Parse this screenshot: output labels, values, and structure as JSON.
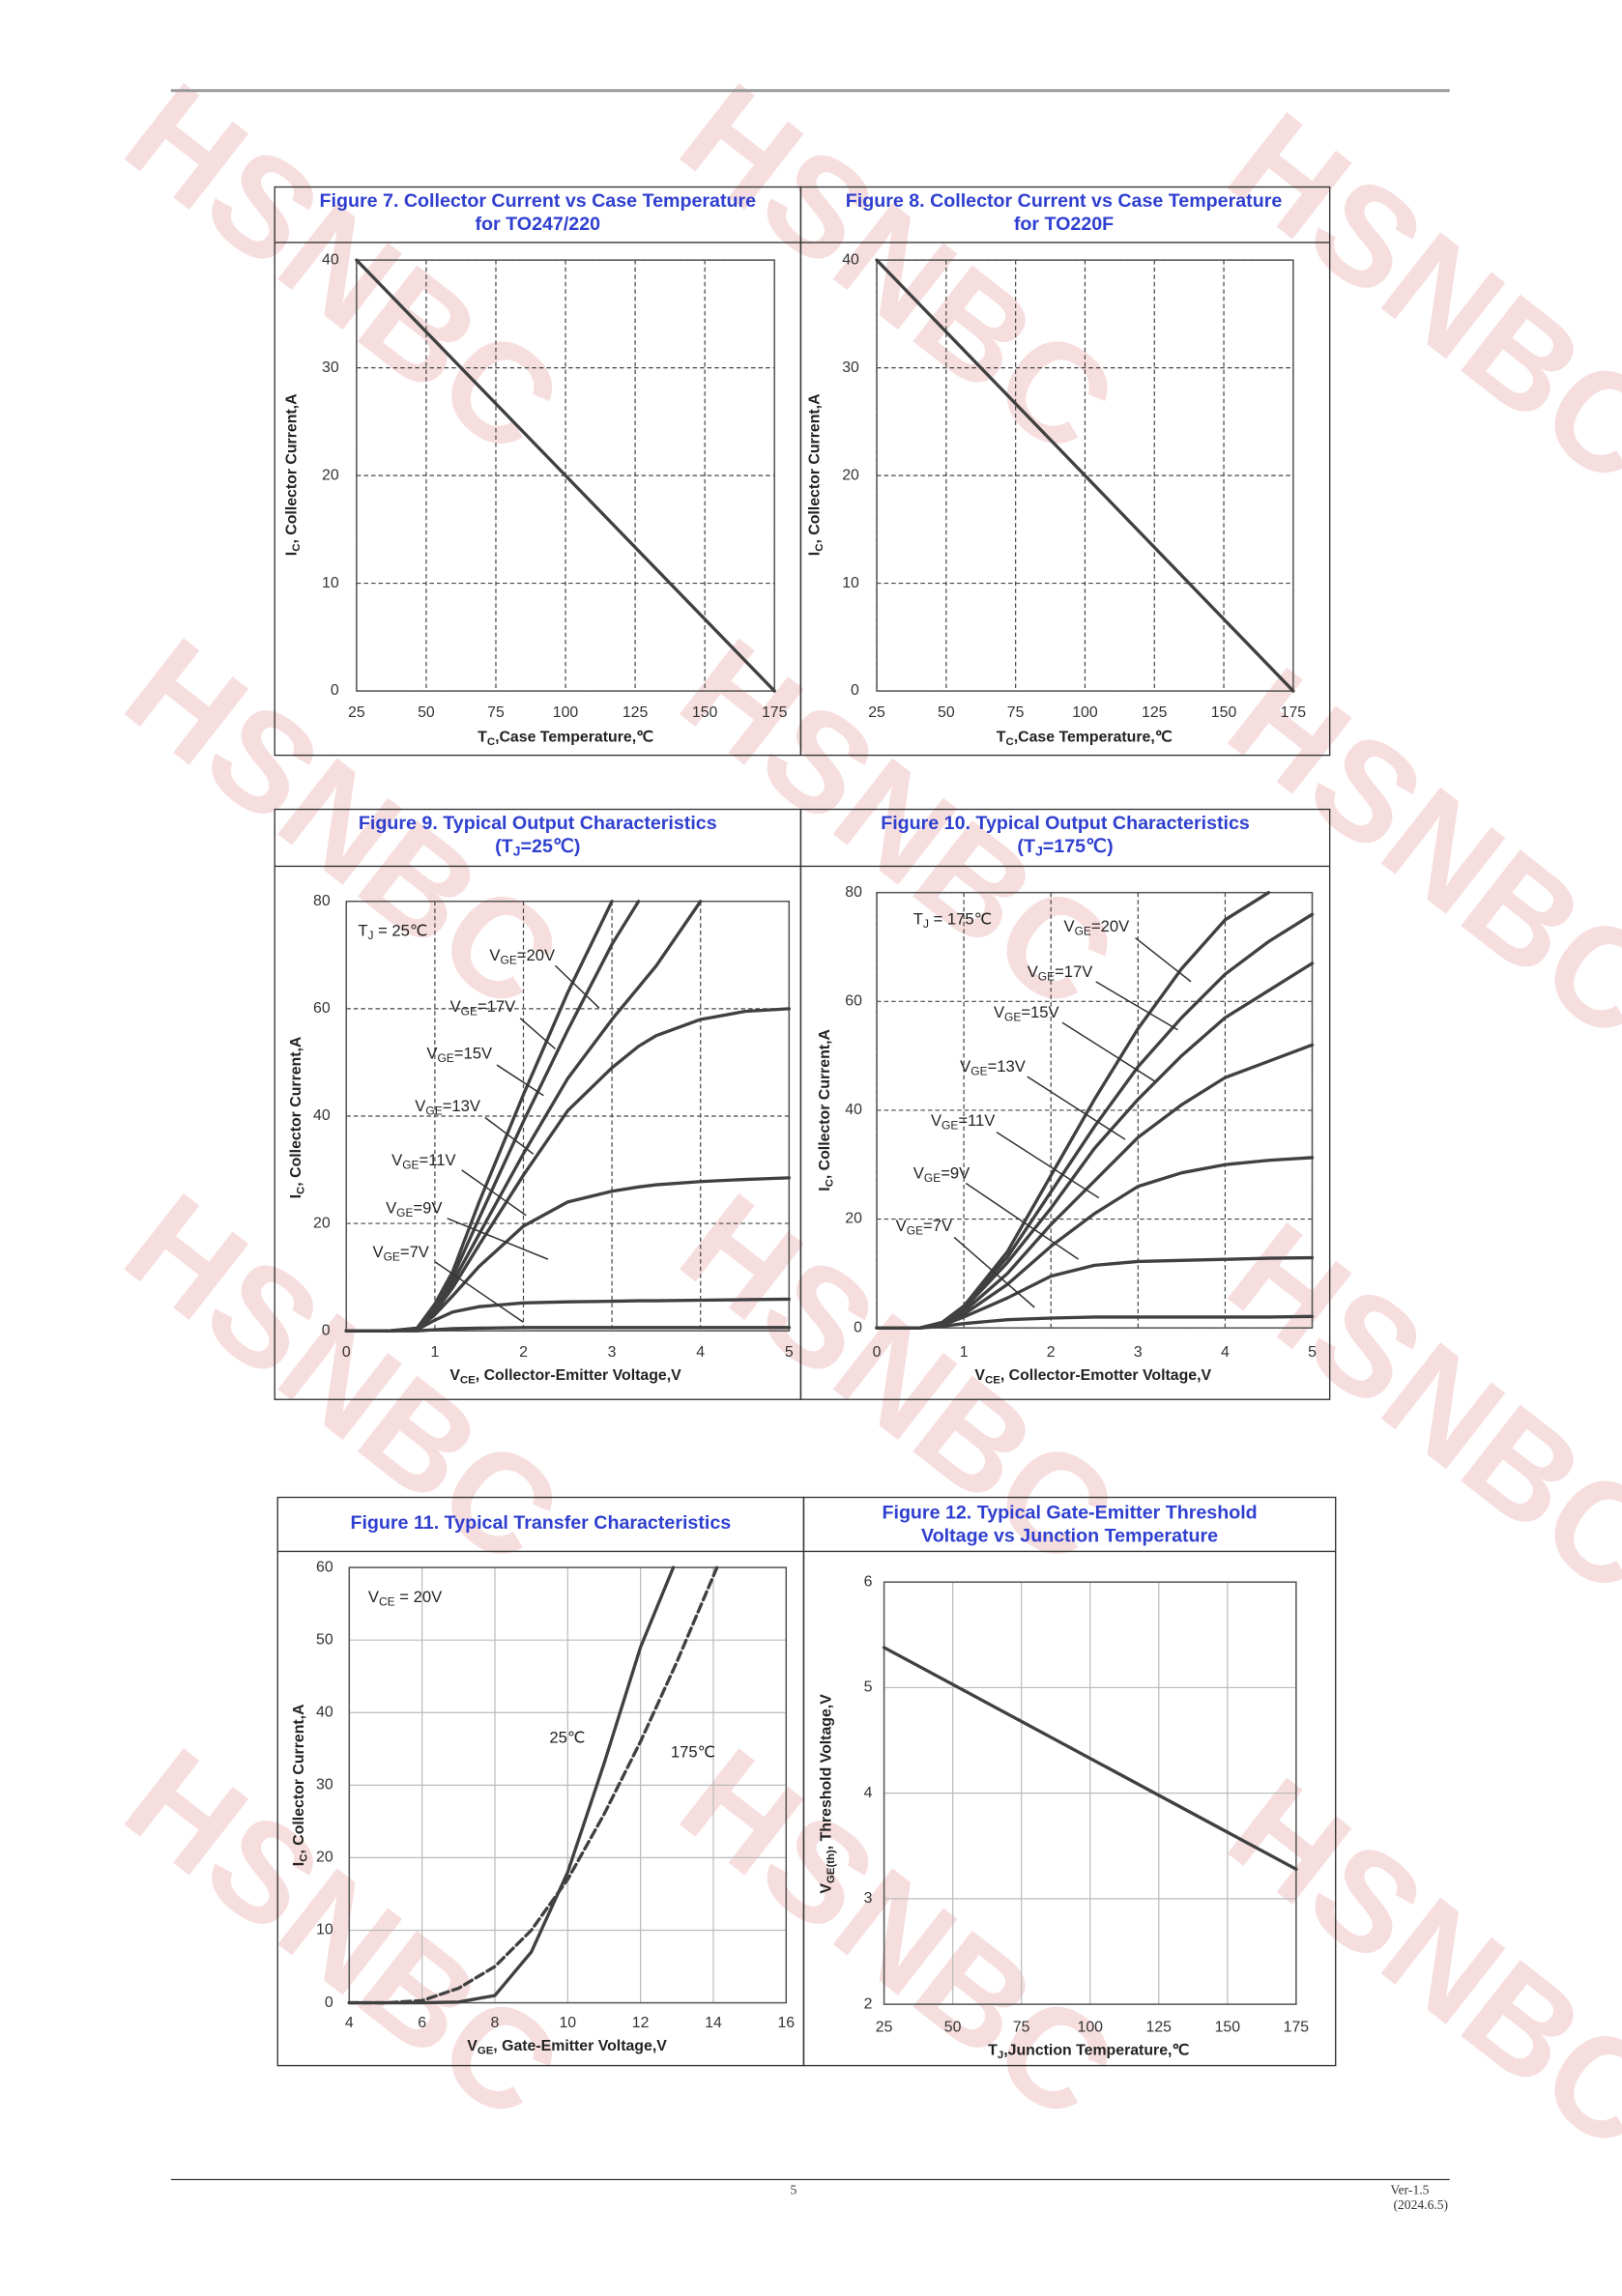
{
  "page": {
    "watermark": "HSNBC",
    "page_number": "5",
    "version": "Ver-1.5",
    "date": "(2024.6.5)"
  },
  "chart_data": [
    {
      "type": "line",
      "title": [
        "Figure 7. Collector Current vs Case Temperature",
        "for TO247/220"
      ],
      "xlabel": [
        "T",
        "C",
        ",Case Temperature,℃"
      ],
      "ylabel": [
        "I",
        "C",
        ", Collector Current,A"
      ],
      "x": [
        25,
        175
      ],
      "series": [
        {
          "color": "#404040",
          "values": [
            40,
            0
          ]
        }
      ],
      "xlim": [
        25,
        175
      ],
      "xticks": [
        25,
        50,
        75,
        100,
        125,
        150,
        175
      ],
      "ylim": [
        0,
        40
      ],
      "yticks": [
        0,
        10,
        20,
        30,
        40
      ],
      "grid": true,
      "grid_style": "dashed"
    },
    {
      "type": "line",
      "title": [
        "Figure 8. Collector Current vs Case Temperature",
        "for TO220F"
      ],
      "xlabel": [
        "T",
        "C",
        ",Case Temperature,℃"
      ],
      "ylabel": [
        "I",
        "C",
        ", Collector Current,A"
      ],
      "x": [
        25,
        175
      ],
      "series": [
        {
          "color": "#404040",
          "values": [
            40,
            0
          ]
        }
      ],
      "xlim": [
        25,
        175
      ],
      "xticks": [
        25,
        50,
        75,
        100,
        125,
        150,
        175
      ],
      "ylim": [
        0,
        40
      ],
      "yticks": [
        0,
        10,
        20,
        30,
        40
      ],
      "grid": true,
      "grid_style": "dashed"
    },
    {
      "type": "line",
      "title": [
        "Figure 9. Typical Output Characteristics",
        [
          "(T",
          "J",
          "=25℃)"
        ]
      ],
      "xlabel": [
        "V",
        "CE",
        ", Collector-Emitter Voltage,V"
      ],
      "ylabel": [
        "I",
        "C",
        ", Collector Current,A"
      ],
      "annotations": [
        [
          "T",
          "J",
          " = 25℃"
        ]
      ],
      "x": [
        0,
        0.5,
        0.8,
        1,
        1.2,
        1.5,
        2,
        2.5,
        3,
        3.3,
        3.5,
        4,
        4.5,
        5
      ],
      "series": [
        {
          "name": [
            "V",
            "GE",
            "=20V"
          ],
          "color": "#404040",
          "values": [
            0,
            0,
            0.5,
            5,
            11,
            24,
            44,
            63,
            80,
            null,
            null,
            null,
            null,
            null
          ]
        },
        {
          "name": [
            "V",
            "GE",
            "=17V"
          ],
          "color": "#404040",
          "values": [
            0,
            0,
            0.5,
            4.5,
            10,
            21,
            39,
            56,
            72,
            80,
            null,
            null,
            null,
            null
          ]
        },
        {
          "name": [
            "V",
            "GE",
            "=15V"
          ],
          "color": "#404040",
          "values": [
            0,
            0,
            0.4,
            4,
            9,
            18,
            33,
            47,
            58,
            64,
            68,
            80,
            null,
            null
          ]
        },
        {
          "name": [
            "V",
            "GE",
            "=13V"
          ],
          "color": "#404040",
          "values": [
            0,
            0,
            0.4,
            3.5,
            8,
            16,
            29,
            41,
            49,
            53,
            55,
            58,
            59.5,
            60
          ]
        },
        {
          "name": [
            "V",
            "GE",
            "=11V"
          ],
          "color": "#404040",
          "values": [
            0,
            0,
            0.3,
            3,
            6.5,
            12,
            19.5,
            24,
            26,
            26.8,
            27.2,
            27.8,
            28.2,
            28.5
          ]
        },
        {
          "name": [
            "V",
            "GE",
            "=9V"
          ],
          "color": "#404040",
          "values": [
            0,
            0,
            0.2,
            2,
            3.5,
            4.5,
            5.2,
            5.4,
            5.5,
            5.6,
            5.6,
            5.7,
            5.8,
            5.9
          ]
        },
        {
          "name": [
            "V",
            "GE",
            "=7V"
          ],
          "color": "#404040",
          "values": [
            0,
            0,
            0,
            0.2,
            0.4,
            0.5,
            0.6,
            0.6,
            0.6,
            0.6,
            0.6,
            0.6,
            0.6,
            0.6
          ]
        }
      ],
      "xlim": [
        0,
        5
      ],
      "xticks": [
        0,
        1,
        2,
        3,
        4,
        5
      ],
      "ylim": [
        0,
        80
      ],
      "yticks": [
        0,
        20,
        40,
        60,
        80
      ],
      "grid": true,
      "grid_style": "dashed"
    },
    {
      "type": "line",
      "title": [
        "Figure 10. Typical Output Characteristics",
        [
          "(T",
          "J",
          "=175℃)"
        ]
      ],
      "xlabel": [
        "V",
        "CE",
        ", Collector-Emotter Voltage,V"
      ],
      "ylabel": [
        "I",
        "C",
        ", Collector Current,A"
      ],
      "annotations": [
        [
          "T",
          "J",
          " = 175℃"
        ]
      ],
      "x": [
        0,
        0.5,
        0.75,
        1,
        1.5,
        2,
        2.5,
        3,
        3.5,
        4,
        4.5,
        5
      ],
      "series": [
        {
          "name": [
            "V",
            "GE",
            "=20V"
          ],
          "color": "#404040",
          "values": [
            0,
            0,
            1,
            4,
            14,
            28,
            42,
            55,
            66,
            75,
            80,
            null
          ]
        },
        {
          "name": [
            "V",
            "GE",
            "=17V"
          ],
          "color": "#404040",
          "values": [
            0,
            0,
            1,
            4,
            13,
            25,
            37,
            48,
            57,
            65,
            71,
            76
          ]
        },
        {
          "name": [
            "V",
            "GE",
            "=15V"
          ],
          "color": "#404040",
          "values": [
            0,
            0,
            0.9,
            3.5,
            12,
            22,
            33,
            42,
            50,
            57,
            62,
            67
          ]
        },
        {
          "name": [
            "V",
            "GE",
            "=13V"
          ],
          "color": "#404040",
          "values": [
            0,
            0,
            0.8,
            3,
            10,
            19,
            27,
            35,
            41,
            46,
            49,
            52
          ]
        },
        {
          "name": [
            "V",
            "GE",
            "=11V"
          ],
          "color": "#404040",
          "values": [
            0,
            0,
            0.7,
            2.5,
            8,
            15,
            21,
            26,
            28.5,
            30,
            30.8,
            31.3
          ]
        },
        {
          "name": [
            "V",
            "GE",
            "=9V"
          ],
          "color": "#404040",
          "values": [
            0,
            0,
            0.5,
            2,
            5.5,
            9.5,
            11.5,
            12.2,
            12.4,
            12.6,
            12.8,
            12.9
          ]
        },
        {
          "name": [
            "V",
            "GE",
            "=7V"
          ],
          "color": "#404040",
          "values": [
            0,
            0,
            0.3,
            0.8,
            1.5,
            1.8,
            2,
            2,
            2,
            2,
            2,
            2.1
          ]
        }
      ],
      "xlim": [
        0,
        5
      ],
      "xticks": [
        0,
        1,
        2,
        3,
        4,
        5
      ],
      "ylim": [
        0,
        80
      ],
      "yticks": [
        0,
        20,
        40,
        60,
        80
      ],
      "grid": true,
      "grid_style": "dashed"
    },
    {
      "type": "line",
      "title": [
        "Figure 11. Typical Transfer Characteristics"
      ],
      "xlabel": [
        "V",
        "GE",
        ", Gate-Emitter Voltage,V"
      ],
      "ylabel": [
        "I",
        "C",
        ", Collector Current,A"
      ],
      "annotations": [
        [
          "V",
          "CE",
          " = 20V"
        ]
      ],
      "series": [
        {
          "name": "25℃",
          "color": "#404040",
          "style": "solid",
          "x": [
            4,
            6,
            7,
            8,
            9,
            10,
            11,
            12,
            12.9
          ],
          "values": [
            0,
            0,
            0.1,
            1,
            7,
            18,
            33,
            49,
            60
          ]
        },
        {
          "name": "175℃",
          "color": "#404040",
          "style": "dashed",
          "x": [
            4,
            5,
            6,
            7,
            8,
            9,
            10,
            11,
            12,
            13,
            14.1
          ],
          "values": [
            0,
            0,
            0.3,
            2,
            5,
            10,
            17,
            26,
            36,
            47,
            60
          ]
        }
      ],
      "xlim": [
        4,
        16
      ],
      "xticks": [
        4,
        6,
        8,
        10,
        12,
        14,
        16
      ],
      "ylim": [
        0,
        60
      ],
      "yticks": [
        0,
        10,
        20,
        30,
        40,
        50,
        60
      ],
      "grid": true,
      "grid_style": "solid"
    },
    {
      "type": "line",
      "title": [
        "Figure 12. Typical Gate-Emitter Threshold",
        "Voltage vs Junction Temperature"
      ],
      "xlabel": [
        "T",
        "J",
        ",Junction Temperature,℃"
      ],
      "ylabel": [
        "V",
        "GE(th)",
        ", Threshold Voltage,V"
      ],
      "x": [
        25,
        175
      ],
      "series": [
        {
          "color": "#404040",
          "values": [
            5.38,
            3.28
          ]
        }
      ],
      "xlim": [
        25,
        175
      ],
      "xticks": [
        25,
        50,
        75,
        100,
        125,
        150,
        175
      ],
      "ylim": [
        2,
        6
      ],
      "yticks": [
        2,
        3,
        4,
        5,
        6
      ],
      "grid": true,
      "grid_style": "solid"
    }
  ]
}
